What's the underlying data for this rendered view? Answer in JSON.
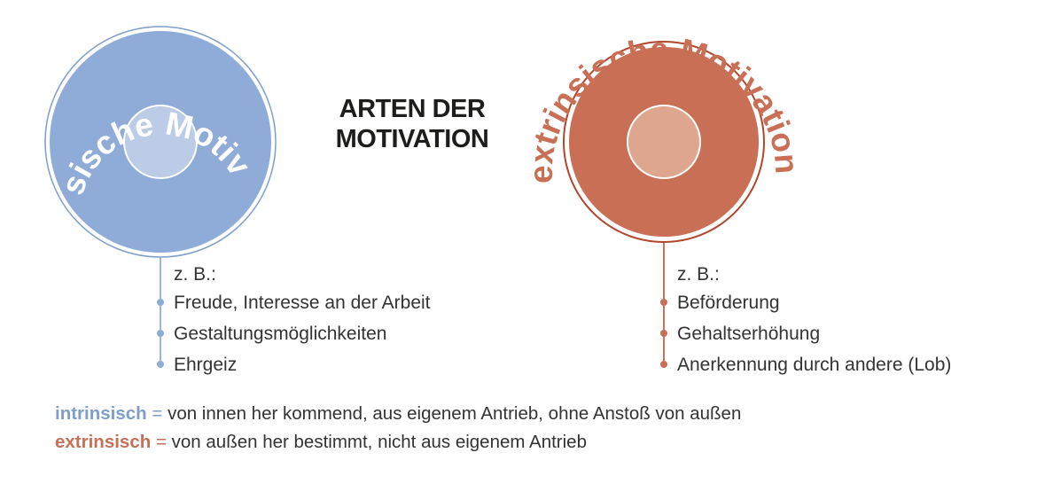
{
  "title": {
    "line1": "ARTEN DER",
    "line2": "MOTIVATION"
  },
  "colors": {
    "intrinsic": "#8fabd8",
    "intrinsic_line": "#7f9fc9",
    "intrinsic_inner": "#bccbe6",
    "extrinsic": "#c86f55",
    "extrinsic_line": "#b3452d",
    "extrinsic_inner": "#dfa68f"
  },
  "intrinsic": {
    "circle_label": "intrinsische Motivation",
    "zb": "z. B.:",
    "items": [
      "Freude, Interesse an der Arbeit",
      "Gestaltungsmöglichkeiten",
      "Ehrgeiz"
    ]
  },
  "extrinsic": {
    "circle_label": "extrinsische Motivation",
    "zb": "z. B.:",
    "items": [
      "Beförderung",
      "Gehaltserhöhung",
      "Anerkennung durch andere (Lob)"
    ]
  },
  "definitions": {
    "intrinsic_term": "intrinsisch",
    "intrinsic_eq": "=",
    "intrinsic_text": "von innen her kommend, aus eigenem Antrieb, ohne Anstoß von außen",
    "extrinsic_term": "extrinsisch",
    "extrinsic_eq": "=",
    "extrinsic_text": "von außen her bestimmt, nicht aus eigenem Antrieb"
  }
}
